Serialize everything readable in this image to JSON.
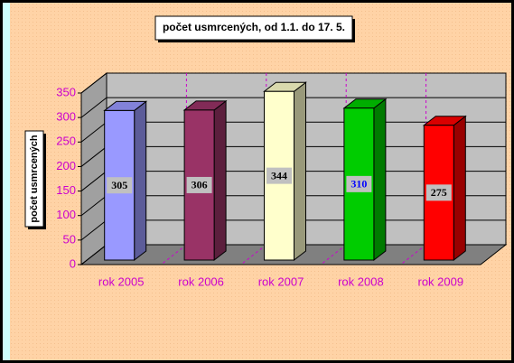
{
  "chart_data": {
    "type": "bar3d",
    "title": "počet usmrcených, od 1.1.  do  17. 5.",
    "y_label": "počet usmrcených",
    "categories": [
      "rok 2005",
      "rok 2006",
      "rok 2007",
      "rok 2008",
      "rok 2009"
    ],
    "values": [
      305,
      306,
      344,
      310,
      275
    ],
    "colors": [
      "#9999ff",
      "#993366",
      "#ffffcc",
      "#00cc00",
      "#ff0000"
    ],
    "label_colors": [
      "#000000",
      "#000000",
      "#000000",
      "#0000ff",
      "#000000"
    ],
    "ylim": [
      0,
      350
    ],
    "yticks": [
      0,
      50,
      100,
      150,
      200,
      250,
      300,
      350
    ],
    "grid": true
  }
}
